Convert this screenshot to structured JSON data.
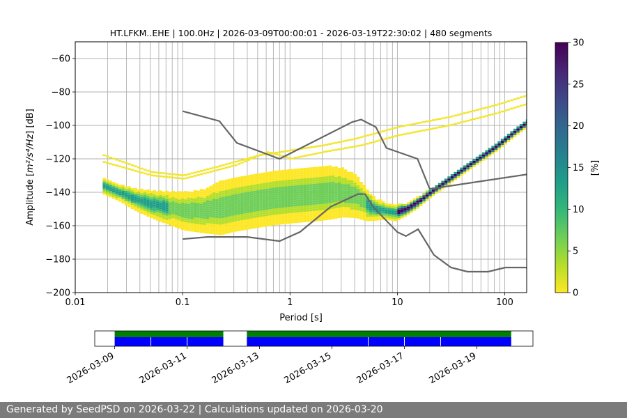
{
  "chart_data": {
    "type": "heatmap",
    "title": "HT.LFKM..EHE | 100.0Hz | 2026-03-09T00:00:01 - 2026-03-19T22:30:02 | 480 segments",
    "xlabel": "Period [s]",
    "ylabel_prefix": "Amplitude [",
    "ylabel_unit": "m²/s⁴/Hz",
    "ylabel_suffix": "] [dB]",
    "x_scale": "log",
    "xlim": [
      0.01,
      160
    ],
    "ylim": [
      -200,
      -50
    ],
    "x_ticks": [
      {
        "value": 0.01,
        "label": "0.01"
      },
      {
        "value": 0.1,
        "label": "0.1"
      },
      {
        "value": 1,
        "label": "1"
      },
      {
        "value": 10,
        "label": "10"
      },
      {
        "value": 100,
        "label": "100"
      }
    ],
    "y_ticks": [
      {
        "value": -60,
        "label": "−60"
      },
      {
        "value": -80,
        "label": "−80"
      },
      {
        "value": -100,
        "label": "−100"
      },
      {
        "value": -120,
        "label": "−120"
      },
      {
        "value": -140,
        "label": "−140"
      },
      {
        "value": -160,
        "label": "−160"
      },
      {
        "value": -180,
        "label": "−180"
      },
      {
        "value": -200,
        "label": "−200"
      }
    ],
    "grid": true,
    "colorbar": {
      "label": "[%]",
      "range": [
        0,
        30
      ],
      "ticks": [
        {
          "value": 0,
          "label": "0"
        },
        {
          "value": 5,
          "label": "5"
        },
        {
          "value": 10,
          "label": "10"
        },
        {
          "value": 15,
          "label": "15"
        },
        {
          "value": 20,
          "label": "20"
        },
        {
          "value": 25,
          "label": "25"
        },
        {
          "value": 30,
          "label": "30"
        }
      ],
      "colors": [
        "#fde725",
        "#b5de2b",
        "#6ece58",
        "#35b779",
        "#1f9e89",
        "#26828e",
        "#31688e",
        "#3e4989",
        "#482878",
        "#440154"
      ]
    },
    "noise_models": [
      {
        "name": "high-noise-model",
        "x": [
          0.1,
          0.22,
          0.32,
          0.8,
          3.8,
          4.6,
          6.3,
          7.9,
          15.4,
          20,
          354.8
        ],
        "y": [
          -91.5,
          -97.4,
          -110.5,
          -120,
          -98,
          -96.5,
          -101,
          -113.5,
          -120,
          -138,
          -126
        ]
      },
      {
        "name": "low-noise-model",
        "x": [
          0.1,
          0.17,
          0.4,
          0.8,
          1.24,
          2.4,
          4.3,
          5,
          6,
          10,
          12,
          15.6,
          21.9,
          31.6,
          45,
          70,
          101,
          154,
          328
        ],
        "y": [
          -168,
          -166.7,
          -166.7,
          -169.2,
          -163.7,
          -148.6,
          -141.1,
          -141.1,
          -149,
          -163.8,
          -166.2,
          -162.1,
          -177.5,
          -185,
          -187.5,
          -187.5,
          -185,
          -185,
          -187.5
        ]
      }
    ],
    "mode_curve": {
      "x": [
        0.018,
        0.025,
        0.035,
        0.05,
        0.07,
        0.1,
        0.15,
        0.22,
        0.3,
        0.45,
        0.7,
        1.0,
        1.5,
        2.2,
        3.0,
        4.0,
        5.0,
        6.0,
        7.5,
        9.5,
        12,
        15,
        20,
        30,
        50,
        80,
        120,
        160
      ],
      "y": [
        -136,
        -140,
        -144,
        -147,
        -149,
        -151,
        -151,
        -149,
        -147,
        -145,
        -143,
        -142,
        -141,
        -140,
        -140,
        -142,
        -147,
        -150,
        -151,
        -152,
        -150,
        -146,
        -140,
        -132,
        -122,
        -113,
        -104,
        -98
      ],
      "spread_db": [
        3,
        3,
        4,
        5,
        6,
        7,
        8,
        10,
        10,
        10,
        10,
        10,
        10,
        10,
        9,
        8,
        6,
        4,
        3,
        3,
        2,
        2,
        1.5,
        1.5,
        1.5,
        1.5,
        1.5,
        1.5
      ]
    },
    "outlier_lines": [
      {
        "x": [
          0.018,
          0.05,
          0.1,
          0.2,
          0.5,
          1.0,
          2.0,
          4.0,
          10,
          30,
          80,
          160
        ],
        "y": [
          -118,
          -128,
          -130,
          -125,
          -118,
          -115,
          -112,
          -108,
          -101,
          -95,
          -88,
          -82
        ]
      },
      {
        "x": [
          0.018,
          0.05,
          0.1,
          0.3,
          0.6,
          1.0,
          2.0,
          4.5,
          10,
          30,
          80,
          160
        ],
        "y": [
          -122,
          -130,
          -132,
          -124,
          -116,
          -120,
          -116,
          -112,
          -106,
          -100,
          -93,
          -87
        ]
      }
    ],
    "timeline": {
      "tick_labels": [
        "2026-03-09",
        "2026-03-11",
        "2026-03-13",
        "2026-03-15",
        "2026-03-17",
        "2026-03-19"
      ],
      "start_day": 8.45,
      "end_day": 20.55,
      "tick_days": [
        9,
        11,
        13,
        15,
        17,
        19
      ],
      "coverage": [
        [
          9.0,
          12.0
        ],
        [
          12.65,
          19.95
        ]
      ],
      "day_separators": [
        10,
        11,
        16,
        17,
        18
      ],
      "colors": {
        "coverage": "#008000",
        "data": "#0000ff"
      }
    }
  },
  "footer": {
    "text": "Generated by SeedPSD on 2026-03-22 | Calculations updated on 2026-03-20"
  }
}
